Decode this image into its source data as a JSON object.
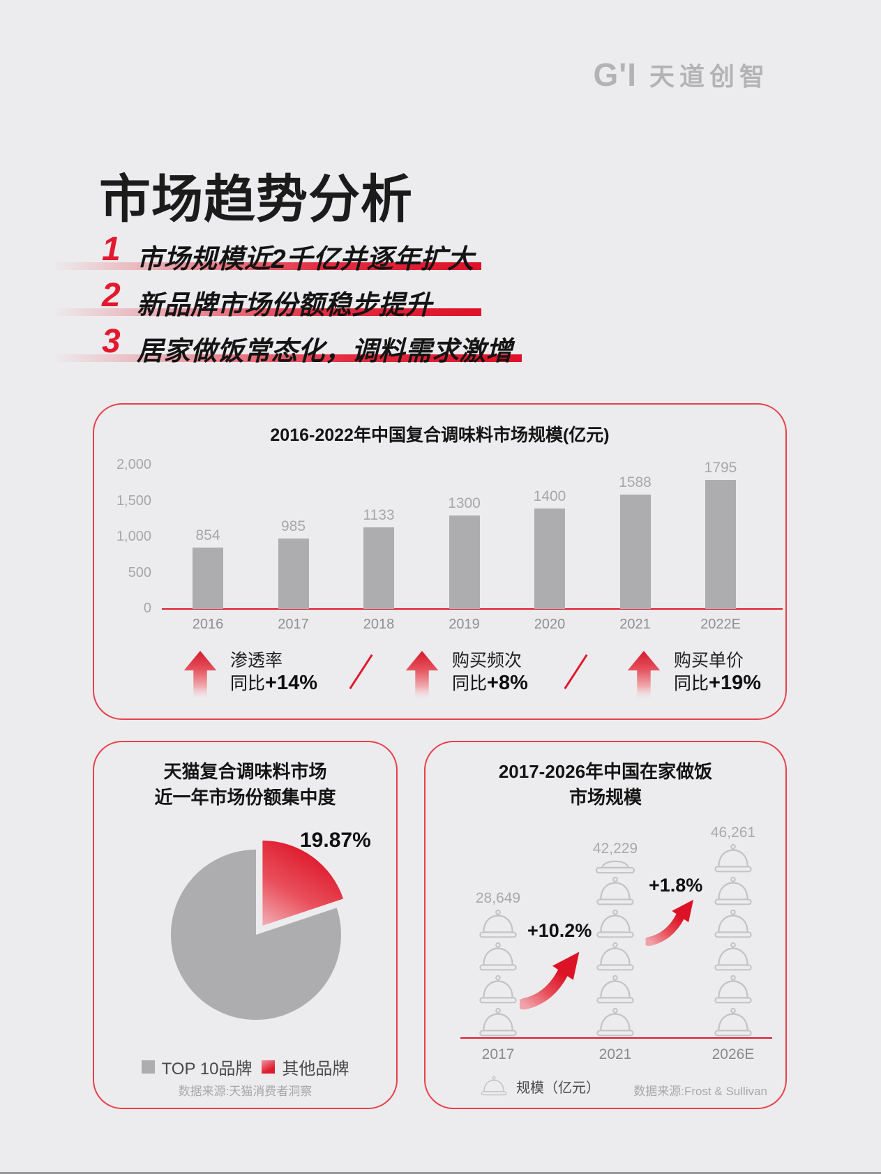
{
  "header": {
    "logo_mark": "G'I",
    "logo_text": "天道创智"
  },
  "title": "市场趋势分析",
  "points": [
    {
      "num": "1",
      "text": "市场规模近2千亿并逐年扩大"
    },
    {
      "num": "2",
      "text": "新品牌市场份额稳步提升"
    },
    {
      "num": "3",
      "text": "居家做饭常态化，调料需求激增"
    }
  ],
  "colors": {
    "accent_red": "#E3192E",
    "card_border": "#E8404B",
    "bar_gray": "#ADADB0",
    "muted_text": "#A7A7AA",
    "axis_text": "#8F8F93",
    "background": "#ECECEE",
    "logo_gray": "#B3B3B6"
  },
  "bar_section": {
    "indicators": [
      {
        "name": "渗透率",
        "prefix": "同比",
        "value": "+14%"
      },
      {
        "name": "购买频次",
        "prefix": "同比",
        "value": "+8%"
      },
      {
        "name": "购买单价",
        "prefix": "同比",
        "value": "+19%"
      }
    ]
  },
  "pie_section": {
    "title_lines": [
      "天猫复合调味料市场",
      "近一年市场份额集中度"
    ],
    "source": "数据来源:天猫消费者洞察"
  },
  "picto_section": {
    "title_lines": [
      "2017-2026年中国在家做饭",
      "市场规模"
    ],
    "source": "数据来源:Frost & Sullivan"
  },
  "chart_data": [
    {
      "type": "bar",
      "title": "2016-2022年中国复合调味料市场规模(亿元)",
      "categories": [
        "2016",
        "2017",
        "2018",
        "2019",
        "2020",
        "2021",
        "2022E"
      ],
      "values": [
        854,
        985,
        1133,
        1300,
        1400,
        1588,
        1795
      ],
      "ylim": [
        0,
        2000
      ],
      "yticks": [
        0,
        500,
        1000,
        1500,
        2000
      ],
      "ytick_labels": [
        "0",
        "500",
        "1,000",
        "1,500",
        "2,000"
      ],
      "grid": false,
      "legend": false,
      "xlabel": "",
      "ylabel": ""
    },
    {
      "type": "pie",
      "title": "天猫复合调味料市场近一年市场份额集中度",
      "labels": [
        "TOP 10品牌",
        "其他品牌"
      ],
      "values": [
        80.13,
        19.87
      ],
      "colors": [
        "#ADADB0",
        "#E3192E"
      ],
      "highlight_label": "19.87%",
      "highlight_slice": "其他品牌",
      "exploded": true,
      "legend_position": "bottom"
    },
    {
      "type": "pictogram-bar",
      "title": "2017-2026年中国在家做饭市场规模",
      "categories": [
        "2017",
        "2021",
        "2026E"
      ],
      "values": [
        28649,
        42229,
        46261
      ],
      "value_labels": [
        "28,649",
        "42,229",
        "46,261"
      ],
      "unit_label": "规模（亿元）",
      "icon": "cloche",
      "icon_counts": [
        4,
        5.4,
        6
      ],
      "growth": [
        {
          "from": "2017",
          "to": "2021",
          "label": "+10.2%"
        },
        {
          "from": "2021",
          "to": "2026E",
          "label": "+1.8%"
        }
      ]
    }
  ]
}
